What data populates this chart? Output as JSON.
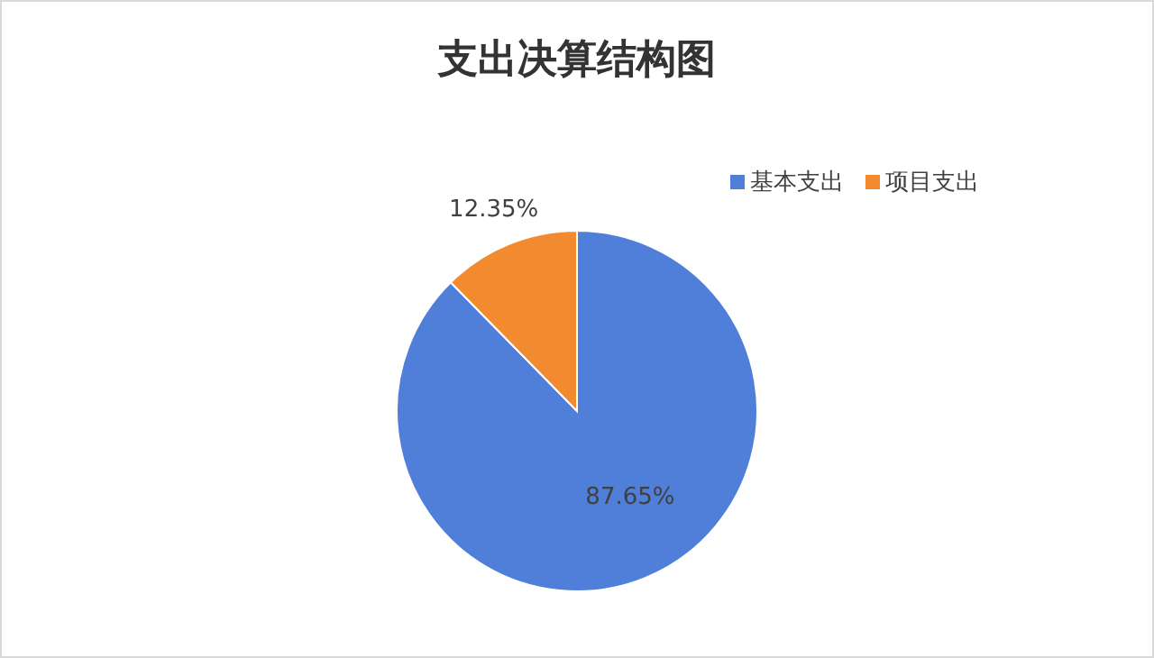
{
  "chart_data": {
    "type": "pie",
    "title": "支出决算结构图",
    "categories": [
      "基本支出",
      "项目支出"
    ],
    "values": [
      87.65,
      12.35
    ],
    "colors": [
      "#4f7fd8",
      "#f28a30"
    ],
    "value_labels": [
      "87.65%",
      "12.35%"
    ],
    "legend": "top right"
  }
}
